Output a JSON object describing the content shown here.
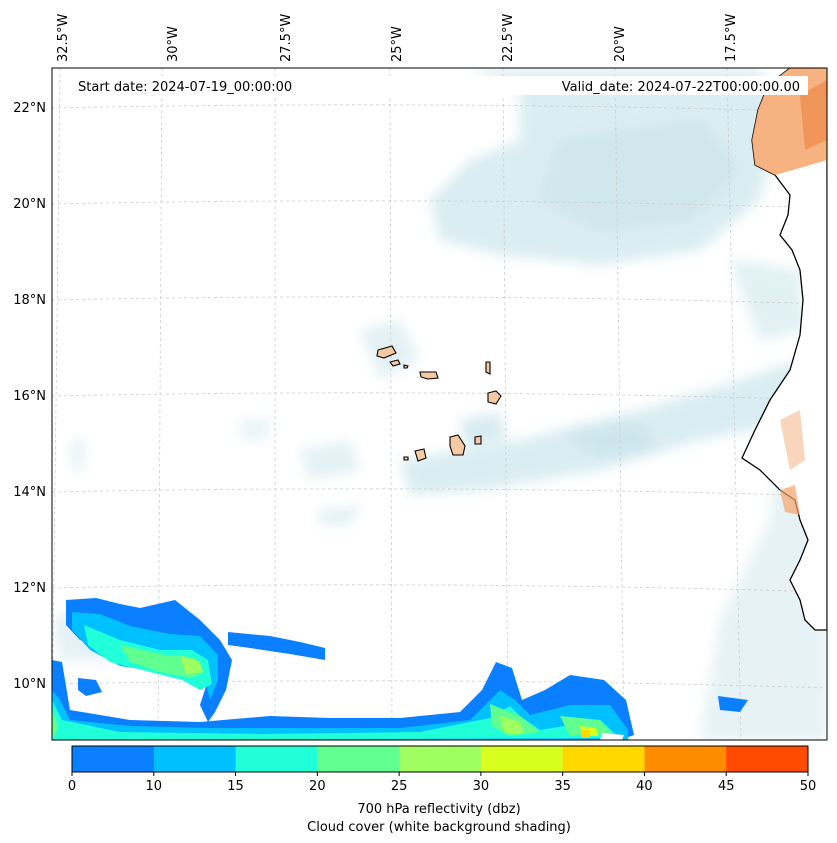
{
  "map": {
    "lon_labels": [
      "32.5°W",
      "30°W",
      "27.5°W",
      "25°W",
      "22.5°W",
      "20°W",
      "17.5°W"
    ],
    "lat_labels": [
      "22°N",
      "20°N",
      "18°N",
      "16°N",
      "14°N",
      "12°N",
      "10°N"
    ],
    "start_date": "Start date: 2024-07-19_00:00:00",
    "valid_date": "Valid_date: 2024-07-22T00:00:00.00",
    "land_color": "#f4c9a4",
    "cloud_color": "#bcdfe8"
  },
  "colorbar": {
    "ticks": [
      "0",
      "10",
      "15",
      "20",
      "25",
      "30",
      "35",
      "40",
      "45",
      "50"
    ],
    "colors": [
      "#0a7fff",
      "#00c0ff",
      "#20ffd8",
      "#60ff90",
      "#a0ff60",
      "#d8ff20",
      "#ffd800",
      "#ff8c00",
      "#ff4a00"
    ],
    "label_line1": "700 hPa reflectivity (dbz)",
    "label_line2": "Cloud cover (white background shading)"
  }
}
